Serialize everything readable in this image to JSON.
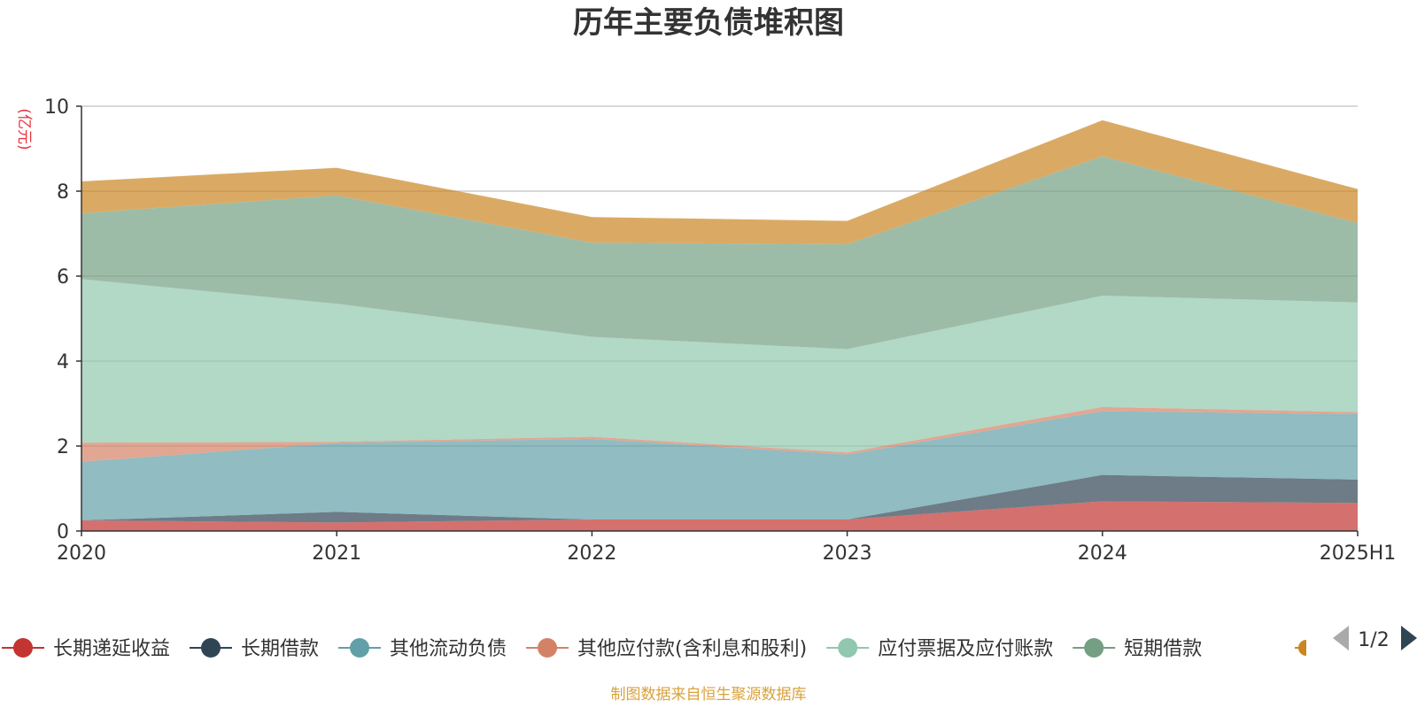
{
  "chart_data": {
    "type": "area",
    "title": "历年主要负债堆积图",
    "unit": "(亿元)",
    "x": [
      "2020",
      "2021",
      "2022",
      "2023",
      "2024",
      "2025H1"
    ],
    "ylim": [
      0,
      10
    ],
    "yticks": [
      0,
      2,
      4,
      6,
      8,
      10
    ],
    "stacked": true,
    "grid": true,
    "series": [
      {
        "name": "长期递延收益",
        "color": "#c23531",
        "values": [
          0.25,
          0.2,
          0.27,
          0.27,
          0.7,
          0.66
        ]
      },
      {
        "name": "长期借款",
        "color": "#2f4554",
        "values": [
          0.0,
          0.25,
          0.0,
          0.0,
          0.62,
          0.55
        ]
      },
      {
        "name": "其他流动负债",
        "color": "#61a0a8",
        "values": [
          1.38,
          1.62,
          1.9,
          1.53,
          1.5,
          1.54
        ]
      },
      {
        "name": "其他应付款(含利息和股利)",
        "color": "#d48265",
        "values": [
          0.45,
          0.03,
          0.05,
          0.05,
          0.1,
          0.05
        ]
      },
      {
        "name": "应付票据及应付账款",
        "color": "#91c7ae",
        "values": [
          3.85,
          3.25,
          2.35,
          2.43,
          2.62,
          2.58
        ]
      },
      {
        "name": "短期借款",
        "color": "#749f83",
        "values": [
          1.55,
          2.55,
          2.22,
          2.47,
          3.28,
          1.87
        ]
      },
      {
        "name": "",
        "color": "#ca8622",
        "values": [
          0.75,
          0.65,
          0.6,
          0.55,
          0.85,
          0.8
        ]
      }
    ],
    "legend": {
      "position": "bottom",
      "page": "1/2"
    },
    "source": "制图数据来自恒生聚源数据库"
  }
}
